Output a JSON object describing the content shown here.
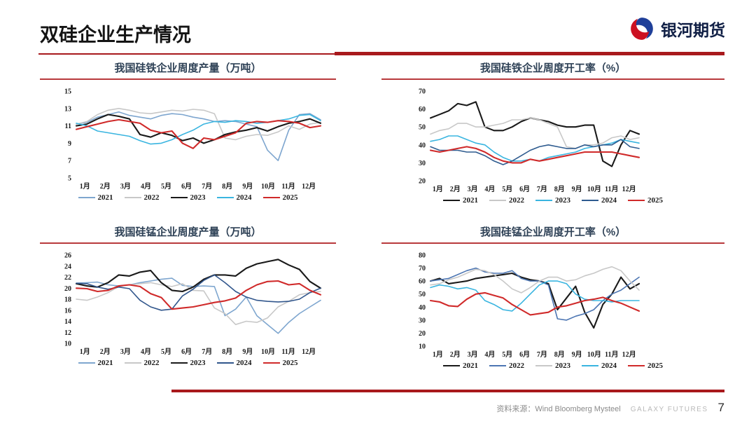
{
  "header": {
    "title": "双硅企业生产情况",
    "logo_text": "银河期货"
  },
  "footer": {
    "source_label": "资料来源：Wind Bloomberg Mysteel",
    "brand": "GALAXY FUTURES",
    "page_number": "7"
  },
  "colors": {
    "accent_red": "#a8191c",
    "title_navy": "#2e4156",
    "logo_blue": "#1f3f99",
    "logo_red": "#cc1122"
  },
  "chart_data": [
    {
      "type": "line",
      "title": "我国硅铁企业周度产量（万吨）",
      "ylabel": "万吨",
      "ylim": [
        5,
        15
      ],
      "yticks": [
        5,
        7,
        9,
        11,
        13,
        15
      ],
      "grid": false,
      "legend_position": "bottom",
      "categories": [
        "1月",
        "2月",
        "3月",
        "4月",
        "5月",
        "6月",
        "7月",
        "8月",
        "9月",
        "10月",
        "11月",
        "12月"
      ],
      "series": [
        {
          "name": "2021",
          "color": "#7ea6cf",
          "values": [
            11.2,
            11.4,
            12.0,
            12.3,
            12.6,
            12.2,
            12.0,
            11.8,
            12.2,
            12.4,
            12.3,
            12.0,
            11.8,
            11.5,
            11.6,
            11.5,
            11.2,
            10.9,
            8.2,
            7.0,
            10.5,
            12.3,
            12.4,
            11.7
          ]
        },
        {
          "name": "2022",
          "color": "#c8c8c8",
          "values": [
            11.2,
            11.5,
            12.3,
            12.8,
            13.0,
            12.8,
            12.5,
            12.4,
            12.6,
            12.8,
            12.7,
            12.9,
            12.8,
            12.4,
            9.6,
            9.4,
            9.8,
            10.0,
            9.9,
            10.3,
            11.0,
            10.6,
            11.2,
            11.4
          ]
        },
        {
          "name": "2023",
          "color": "#1a1a1a",
          "values": [
            11.0,
            11.2,
            11.8,
            12.3,
            12.1,
            11.8,
            10.0,
            9.7,
            10.2,
            9.9,
            9.3,
            9.6,
            9.0,
            9.4,
            10.0,
            10.3,
            10.5,
            10.8,
            10.4,
            10.9,
            11.3,
            11.5,
            11.8,
            11.3
          ]
        },
        {
          "name": "2024",
          "color": "#3ab5e0",
          "values": [
            11.3,
            11.0,
            10.4,
            10.2,
            10.0,
            9.8,
            9.3,
            8.9,
            9.0,
            9.4,
            10.0,
            10.5,
            11.2,
            11.5,
            11.4,
            11.6,
            11.5,
            11.3,
            11.4,
            11.6,
            11.8,
            12.2,
            12.3,
            11.6
          ]
        },
        {
          "name": "2025",
          "color": "#d02a2a",
          "values": [
            10.6,
            10.9,
            11.2,
            11.5,
            11.7,
            11.5,
            11.3,
            10.5,
            10.2,
            10.4,
            9.0,
            8.4,
            9.6,
            9.4,
            9.8,
            10.2,
            11.3,
            11.5,
            11.4,
            11.6,
            11.5,
            11.3,
            10.8,
            11.0
          ]
        }
      ]
    },
    {
      "type": "line",
      "title": "我国硅铁企业周度开工率（%）",
      "ylabel": "%",
      "ylim": [
        20,
        70
      ],
      "yticks": [
        20,
        30,
        40,
        50,
        60,
        70
      ],
      "grid": false,
      "legend_position": "bottom",
      "categories": [
        "1月",
        "2月",
        "3月",
        "4月",
        "5月",
        "6月",
        "7月",
        "8月",
        "9月",
        "10月",
        "11月",
        "12月"
      ],
      "series": [
        {
          "name": "2021",
          "color": "#1a1a1a",
          "values": [
            55,
            57,
            59,
            63,
            62,
            64,
            50,
            48,
            48,
            50,
            53,
            55,
            54,
            53,
            51,
            50,
            50,
            51,
            51,
            31,
            28,
            40,
            48,
            46
          ]
        },
        {
          "name": "2022",
          "color": "#c8c8c8",
          "values": [
            46,
            48,
            49,
            52,
            52,
            50,
            50,
            51,
            52,
            54,
            54,
            55,
            54,
            52,
            50,
            39,
            38,
            40,
            40,
            41,
            44,
            45,
            43,
            44
          ]
        },
        {
          "name": "2023",
          "color": "#3ab5e0",
          "values": [
            42,
            43,
            45,
            45,
            43,
            41,
            40,
            36,
            33,
            31,
            31,
            32,
            31,
            33,
            34,
            35,
            36,
            38,
            39,
            40,
            41,
            43,
            42,
            41
          ]
        },
        {
          "name": "2024",
          "color": "#2e5b8f",
          "values": [
            39,
            37,
            37,
            37,
            36,
            36,
            34,
            31,
            29,
            31,
            34,
            37,
            39,
            40,
            39,
            38,
            38,
            40,
            39,
            40,
            40,
            43,
            39,
            38
          ]
        },
        {
          "name": "2025",
          "color": "#d02a2a",
          "values": [
            37,
            36,
            37,
            38,
            39,
            38,
            36,
            33,
            31,
            30,
            30,
            32,
            31,
            32,
            33,
            34,
            35,
            36,
            36,
            36,
            36,
            35,
            34,
            33
          ]
        }
      ]
    },
    {
      "type": "line",
      "title": "我国硅锰企业周度产量（万吨）",
      "ylabel": "万吨",
      "ylim": [
        10,
        26
      ],
      "yticks": [
        10,
        12,
        14,
        16,
        18,
        20,
        22,
        24,
        26
      ],
      "grid": false,
      "legend_position": "bottom",
      "categories": [
        "1月",
        "2月",
        "3月",
        "4月",
        "5月",
        "6月",
        "7月",
        "8月",
        "9月",
        "10月",
        "11月",
        "12月"
      ],
      "series": [
        {
          "name": "2021",
          "color": "#7ea6cf",
          "values": [
            20.9,
            21.0,
            21.1,
            20.6,
            20.4,
            20.6,
            21.0,
            21.3,
            21.6,
            21.8,
            20.5,
            20.3,
            20.4,
            20.3,
            15.0,
            16.2,
            18.4,
            15.0,
            13.4,
            11.8,
            13.8,
            15.4,
            16.6,
            17.8
          ]
        },
        {
          "name": "2022",
          "color": "#c8c8c8",
          "values": [
            18.0,
            17.8,
            18.4,
            19.2,
            20.3,
            20.6,
            20.8,
            21.0,
            20.6,
            20.3,
            20.8,
            19.6,
            19.5,
            16.4,
            15.4,
            13.4,
            14.0,
            13.8,
            14.6,
            16.6,
            17.6,
            18.8,
            19.2,
            19.4
          ]
        },
        {
          "name": "2023",
          "color": "#1a1a1a",
          "values": [
            20.8,
            20.4,
            20.2,
            21.0,
            22.4,
            22.2,
            22.9,
            23.2,
            21.0,
            19.6,
            19.4,
            20.2,
            21.6,
            22.4,
            22.4,
            22.2,
            23.6,
            24.4,
            24.8,
            25.2,
            24.2,
            23.4,
            21.2,
            20.0
          ]
        },
        {
          "name": "2024",
          "color": "#31568c",
          "values": [
            20.9,
            20.8,
            20.2,
            19.8,
            20.2,
            19.9,
            17.8,
            16.6,
            16.0,
            16.2,
            18.6,
            19.8,
            21.4,
            22.4,
            21.0,
            19.4,
            18.4,
            17.8,
            17.6,
            17.5,
            17.6,
            18.0,
            19.2,
            20.0
          ]
        },
        {
          "name": "2025",
          "color": "#d02a2a",
          "values": [
            20.0,
            19.9,
            19.4,
            19.6,
            20.4,
            20.6,
            20.3,
            19.0,
            18.3,
            16.2,
            16.4,
            16.6,
            17.0,
            17.4,
            17.7,
            18.2,
            19.6,
            20.6,
            21.2,
            21.3,
            20.6,
            20.8,
            19.6,
            18.8
          ]
        }
      ]
    },
    {
      "type": "line",
      "title": "我国硅锰企业周度开工率（%）",
      "ylabel": "%",
      "ylim": [
        10,
        80
      ],
      "yticks": [
        10,
        20,
        30,
        40,
        50,
        60,
        70,
        80
      ],
      "grid": false,
      "legend_position": "bottom",
      "categories": [
        "1月",
        "2月",
        "3月",
        "4月",
        "5月",
        "6月",
        "7月",
        "8月",
        "9月",
        "10月",
        "11月",
        "12月"
      ],
      "series": [
        {
          "name": "2021",
          "color": "#1a1a1a",
          "values": [
            60,
            62,
            58,
            59,
            60,
            62,
            63,
            64,
            65,
            66,
            63,
            61,
            60,
            58,
            38,
            47,
            56,
            36,
            24,
            42,
            50,
            63,
            54,
            58
          ]
        },
        {
          "name": "2022",
          "color": "#4d76b3",
          "values": [
            60,
            61,
            62,
            65,
            68,
            70,
            67,
            66,
            66,
            68,
            62,
            60,
            60,
            57,
            31,
            30,
            33,
            35,
            38,
            45,
            50,
            53,
            58,
            63
          ]
        },
        {
          "name": "2023",
          "color": "#c8c8c8",
          "values": [
            57,
            58,
            61,
            63,
            66,
            69,
            68,
            65,
            60,
            54,
            51,
            55,
            60,
            63,
            63,
            60,
            61,
            64,
            66,
            69,
            71,
            68,
            60,
            53
          ]
        },
        {
          "name": "2024",
          "color": "#3ab5e0",
          "values": [
            55,
            57,
            56,
            54,
            55,
            53,
            45,
            42,
            38,
            37,
            43,
            50,
            57,
            60,
            60,
            58,
            50,
            46,
            45,
            45,
            44,
            45,
            45,
            45
          ]
        },
        {
          "name": "2025",
          "color": "#d02a2a",
          "values": [
            45,
            44,
            41,
            40.5,
            46,
            50,
            51,
            49,
            47,
            42,
            38,
            34,
            35,
            36,
            40,
            41,
            43,
            45,
            46,
            47.5,
            45,
            43,
            40,
            37
          ]
        }
      ]
    }
  ]
}
